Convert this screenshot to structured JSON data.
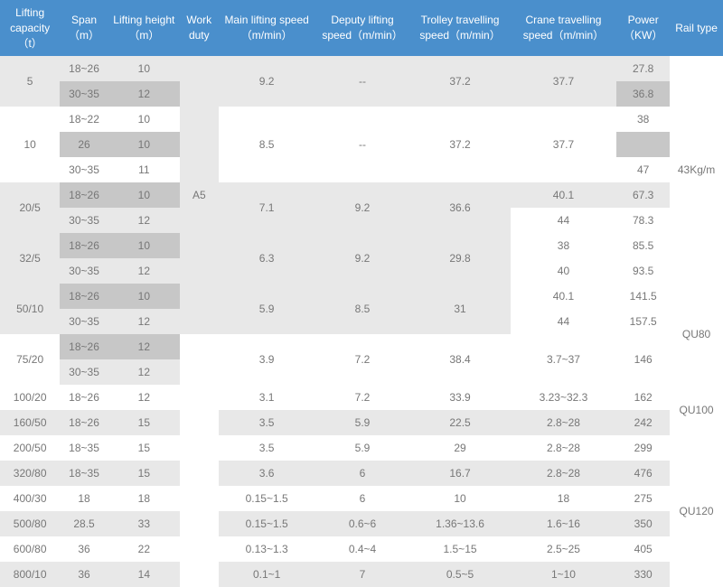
{
  "headers": {
    "lc": "Lifting capacity （t）",
    "span": "Span（m）",
    "lh": "Lifting height（m）",
    "wd": "Work duty",
    "mls": "Main lifting speed（m/min）",
    "dls": "Deputy lifting speed（m/min）",
    "tts": "Trolley travelling speed（m/min）",
    "cts": "Crane travelling speed（m/min）",
    "pw": "Power（KW）",
    "rt": "Rail type"
  },
  "wd": "A5",
  "rail": {
    "r1": "43Kg/m",
    "r2": "QU80",
    "r3": "QU100",
    "r4": "QU120"
  },
  "r01": {
    "lc": "5",
    "span": "18~26",
    "lh": "10",
    "mls": "9.2",
    "dls": "--",
    "tts": "37.2",
    "cts": "37.7",
    "pw": "27.8"
  },
  "r02": {
    "span": "30~35",
    "lh": "12",
    "pw": "36.8"
  },
  "r03": {
    "lc": "10",
    "span": "18~22",
    "lh": "10",
    "mls": "8.5",
    "dls": "--",
    "tts": "37.2",
    "cts": "37.7",
    "pw": "38"
  },
  "r04": {
    "span": "26",
    "lh": "10"
  },
  "r05": {
    "span": "30~35",
    "lh": "11",
    "pw": "47"
  },
  "r06": {
    "lc": "20/5",
    "span": "18~26",
    "lh": "10",
    "mls": "7.1",
    "dls": "9.2",
    "tts": "36.6",
    "cts": "40.1",
    "pw": "67.3"
  },
  "r07": {
    "span": "30~35",
    "lh": "12",
    "cts": "44",
    "pw": "78.3"
  },
  "r08": {
    "lc": "32/5",
    "span": "18~26",
    "lh": "10",
    "mls": "6.3",
    "dls": "9.2",
    "tts": "29.8",
    "cts": "38",
    "pw": "85.5"
  },
  "r09": {
    "span": "30~35",
    "lh": "12",
    "cts": "40",
    "pw": "93.5"
  },
  "r10": {
    "lc": "50/10",
    "span": "18~26",
    "lh": "10",
    "mls": "5.9",
    "dls": "8.5",
    "tts": "31",
    "cts": "40.1",
    "pw": "141.5"
  },
  "r11": {
    "span": "30~35",
    "lh": "12",
    "cts": "44",
    "pw": "157.5"
  },
  "r12": {
    "lc": "75/20",
    "span": "18~26",
    "lh": "12",
    "mls": "3.9",
    "dls": "7.2",
    "tts": "38.4",
    "cts": "3.7~37",
    "pw": "146"
  },
  "r13": {
    "span": "30~35",
    "lh": "12"
  },
  "r14": {
    "lc": "100/20",
    "span": "18~26",
    "lh": "12",
    "mls": "3.1",
    "dls": "7.2",
    "tts": "33.9",
    "cts": "3.23~32.3",
    "pw": "162"
  },
  "r15": {
    "lc": "160/50",
    "span": "18~26",
    "lh": "15",
    "mls": "3.5",
    "dls": "5.9",
    "tts": "22.5",
    "cts": "2.8~28",
    "pw": "242"
  },
  "r16": {
    "lc": "200/50",
    "span": "18~35",
    "lh": "15",
    "mls": "3.5",
    "dls": "5.9",
    "tts": "29",
    "cts": "2.8~28",
    "pw": "299"
  },
  "r17": {
    "lc": "320/80",
    "span": "18~35",
    "lh": "15",
    "mls": "3.6",
    "dls": "6",
    "tts": "16.7",
    "cts": "2.8~28",
    "pw": "476"
  },
  "r18": {
    "lc": "400/30",
    "span": "18",
    "lh": "18",
    "mls": "0.15~1.5",
    "dls": "6",
    "tts": "10",
    "cts": "18",
    "pw": "275"
  },
  "r19": {
    "lc": "500/80",
    "span": "28.5",
    "lh": "33",
    "mls": "0.15~1.5",
    "dls": "0.6~6",
    "tts": "1.36~13.6",
    "cts": "1.6~16",
    "pw": "350"
  },
  "r20": {
    "lc": "600/80",
    "span": "36",
    "lh": "22",
    "mls": "0.13~1.3",
    "dls": "0.4~4",
    "tts": "1.5~15",
    "cts": "2.5~25",
    "pw": "405"
  },
  "r21": {
    "lc": "800/10",
    "span": "36",
    "lh": "14",
    "mls": "0.1~1",
    "dls": "7",
    "tts": "0.5~5",
    "cts": "1~10",
    "pw": "330"
  }
}
